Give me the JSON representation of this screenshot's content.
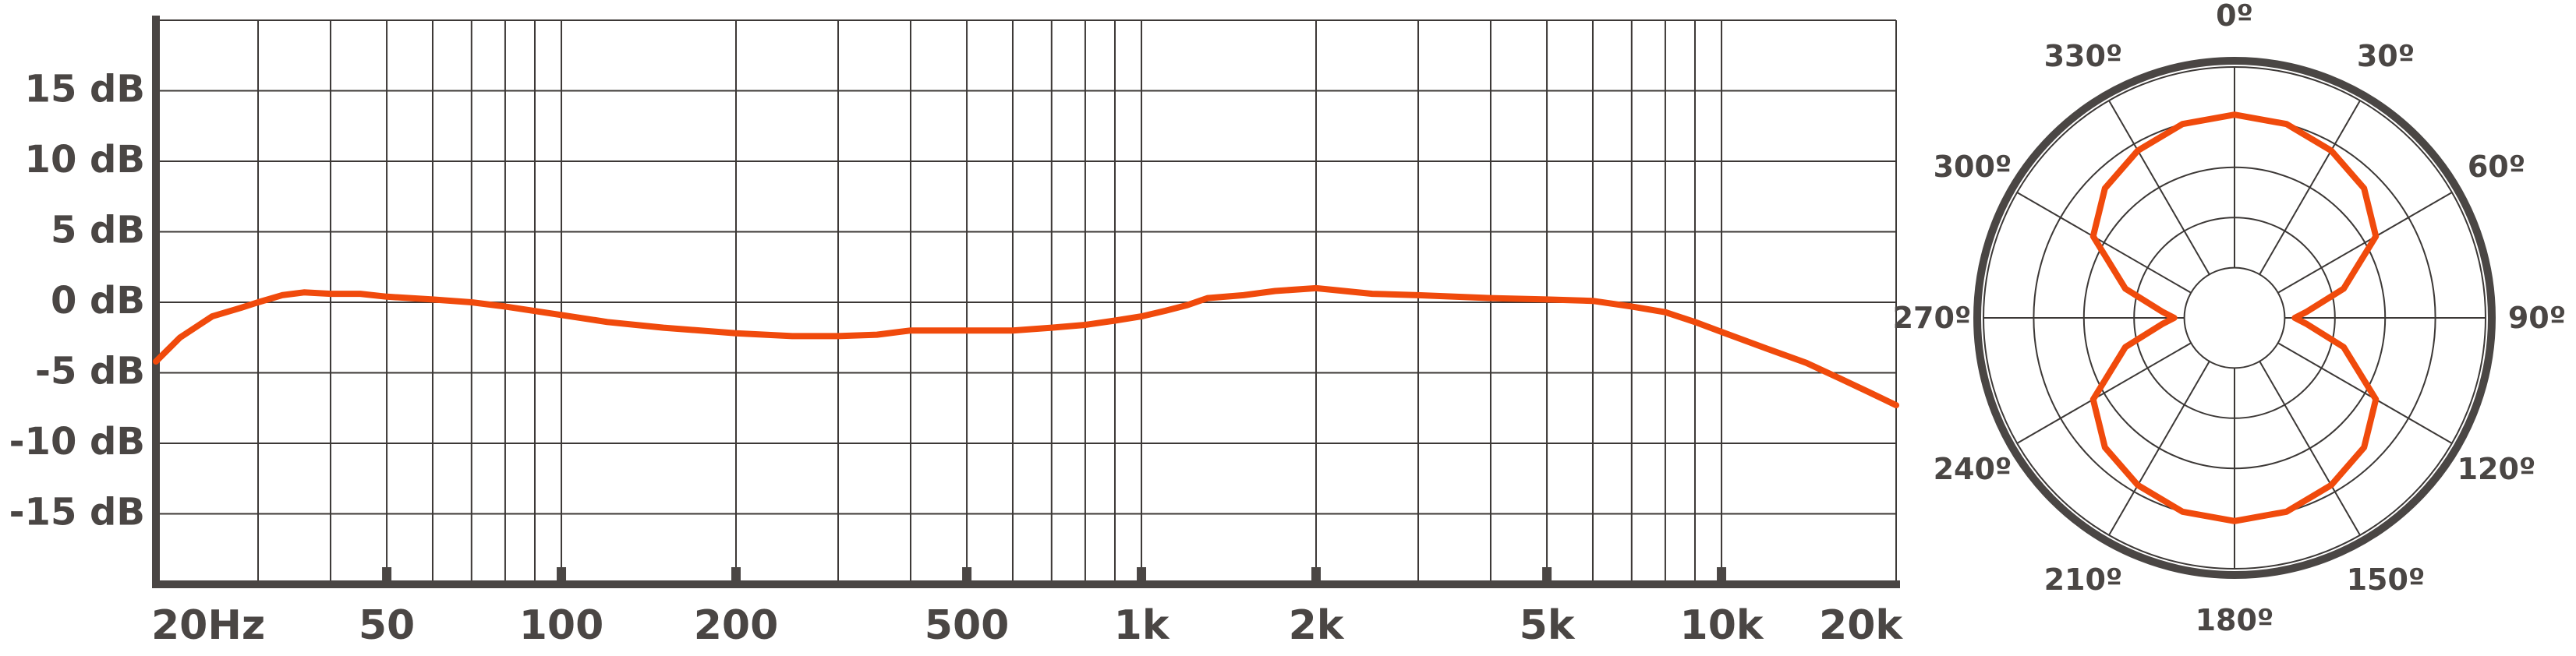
{
  "colors": {
    "curve": "#f04a0c",
    "frame": "#4a4644",
    "grid": "#3c3836",
    "text": "#4a4644"
  },
  "chart_data": [
    {
      "type": "line",
      "title": "",
      "xlabel": "",
      "ylabel": "",
      "x_scale": "log",
      "xlim": [
        20,
        20000
      ],
      "ylim": [
        -20,
        20
      ],
      "grid": true,
      "x_ticks": [
        {
          "value": 20,
          "label": "20Hz"
        },
        {
          "value": 50,
          "label": "50"
        },
        {
          "value": 100,
          "label": "100"
        },
        {
          "value": 200,
          "label": "200"
        },
        {
          "value": 500,
          "label": "500"
        },
        {
          "value": 1000,
          "label": "1k"
        },
        {
          "value": 2000,
          "label": "2k"
        },
        {
          "value": 5000,
          "label": "5k"
        },
        {
          "value": 10000,
          "label": "10k"
        },
        {
          "value": 20000,
          "label": "20k"
        }
      ],
      "x_gridlines": [
        30,
        40,
        50,
        60,
        70,
        80,
        90,
        100,
        200,
        300,
        400,
        500,
        600,
        700,
        800,
        900,
        1000,
        2000,
        3000,
        4000,
        5000,
        6000,
        7000,
        8000,
        9000,
        10000
      ],
      "x_major_ticks": [
        50,
        100,
        200,
        500,
        1000,
        2000,
        5000,
        10000
      ],
      "y_ticks": [
        {
          "value": 15,
          "label": "15 dB"
        },
        {
          "value": 10,
          "label": "10 dB"
        },
        {
          "value": 5,
          "label": "5 dB"
        },
        {
          "value": 0,
          "label": "0 dB"
        },
        {
          "value": -5,
          "label": "-5 dB"
        },
        {
          "value": -10,
          "label": "-10 dB"
        },
        {
          "value": -15,
          "label": "-15 dB"
        }
      ],
      "series": [
        {
          "x": [
            20,
            22,
            25,
            28,
            30,
            33,
            36,
            40,
            45,
            50,
            60,
            70,
            80,
            100,
            120,
            150,
            200,
            250,
            300,
            350,
            400,
            500,
            600,
            700,
            800,
            900,
            1000,
            1100,
            1200,
            1300,
            1500,
            1700,
            2000,
            2500,
            3000,
            4000,
            5000,
            6000,
            7000,
            8000,
            9000,
            10000,
            12000,
            14000,
            16000,
            18000,
            20000
          ],
          "y": [
            -4.2,
            -2.5,
            -1.0,
            -0.4,
            0.0,
            0.5,
            0.7,
            0.6,
            0.6,
            0.4,
            0.2,
            0.0,
            -0.3,
            -0.9,
            -1.4,
            -1.8,
            -2.2,
            -2.4,
            -2.4,
            -2.3,
            -2.0,
            -2.0,
            -2.0,
            -1.8,
            -1.6,
            -1.3,
            -1.0,
            -0.6,
            -0.2,
            0.3,
            0.5,
            0.8,
            1.0,
            0.6,
            0.5,
            0.3,
            0.2,
            0.1,
            -0.3,
            -0.7,
            -1.4,
            -2.1,
            -3.3,
            -4.3,
            -5.4,
            -6.4,
            -7.3
          ]
        }
      ]
    },
    {
      "type": "polar",
      "title": "",
      "angular_ticks": [
        {
          "value": 0,
          "label": "0º"
        },
        {
          "value": 30,
          "label": "30º"
        },
        {
          "value": 60,
          "label": "60º"
        },
        {
          "value": 90,
          "label": "90º"
        },
        {
          "value": 120,
          "label": "120º"
        },
        {
          "value": 150,
          "label": "150º"
        },
        {
          "value": 180,
          "label": "180º"
        },
        {
          "value": 210,
          "label": "210º"
        },
        {
          "value": 240,
          "label": "240º"
        },
        {
          "value": 270,
          "label": "270º"
        },
        {
          "value": 300,
          "label": "300º"
        },
        {
          "value": 330,
          "label": "330º"
        }
      ],
      "rlim": [
        0,
        1
      ],
      "radial_rings": [
        0.2,
        0.4,
        0.6,
        0.8,
        1.0
      ],
      "grid": true,
      "series": [
        {
          "pattern": "figure-8 (bidirectional)",
          "angle_deg": [
            0,
            15,
            30,
            45,
            60,
            75,
            85,
            90,
            95,
            105,
            120,
            135,
            150,
            165,
            180,
            195,
            210,
            225,
            240,
            255,
            265,
            270,
            275,
            285,
            300,
            315,
            330,
            345
          ],
          "r": [
            0.81,
            0.8,
            0.77,
            0.73,
            0.65,
            0.45,
            0.29,
            0.24,
            0.29,
            0.45,
            0.65,
            0.73,
            0.77,
            0.8,
            0.81,
            0.8,
            0.77,
            0.73,
            0.65,
            0.45,
            0.29,
            0.24,
            0.29,
            0.45,
            0.65,
            0.73,
            0.77,
            0.8
          ]
        }
      ]
    }
  ]
}
